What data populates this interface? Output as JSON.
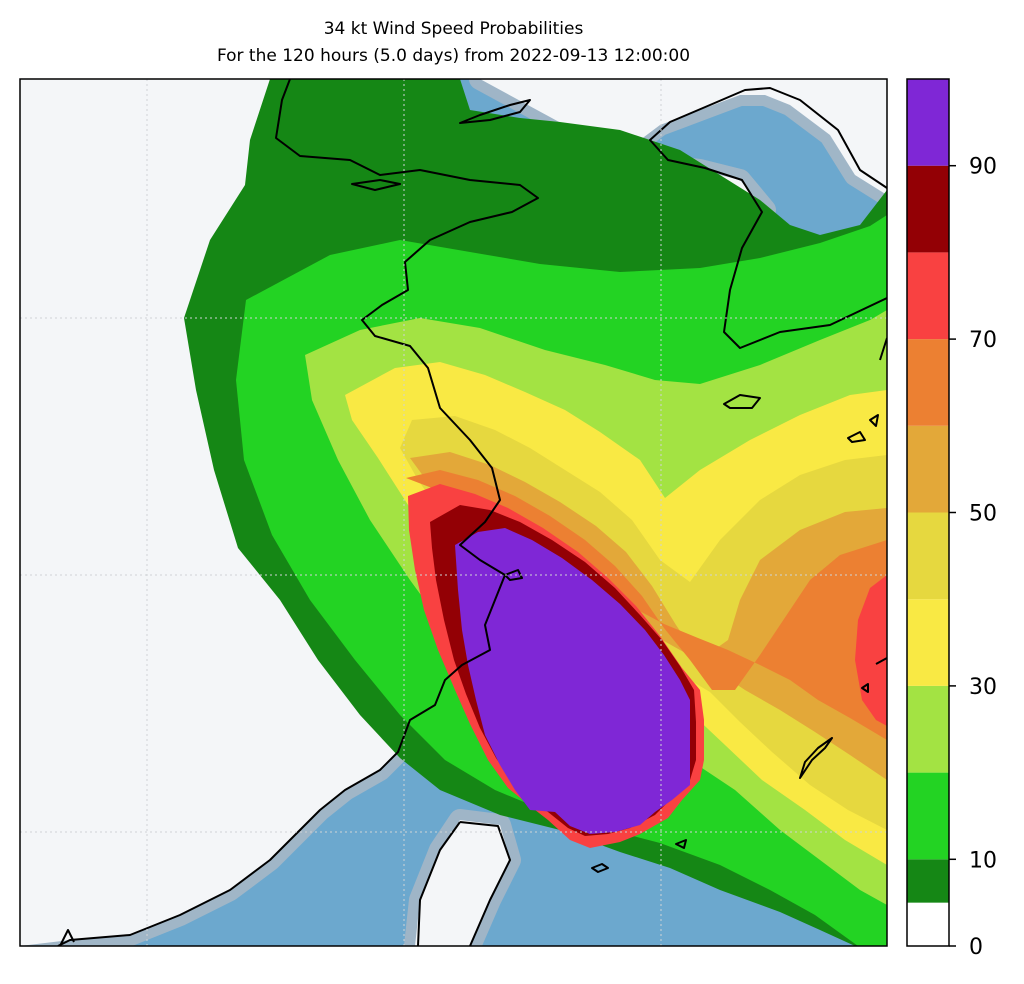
{
  "title": {
    "line1": "34 kt Wind Speed Probabilities",
    "line2": "For the 120 hours (5.0 days) from 2022-09-13 12:00:00"
  },
  "colorbar": {
    "range": [
      0,
      100
    ],
    "bins": [
      {
        "from": 0,
        "to": 5,
        "color": "#ffffff"
      },
      {
        "from": 5,
        "to": 10,
        "color": "#158715"
      },
      {
        "from": 10,
        "to": 20,
        "color": "#23d323"
      },
      {
        "from": 20,
        "to": 30,
        "color": "#a3e343"
      },
      {
        "from": 30,
        "to": 40,
        "color": "#f9e944"
      },
      {
        "from": 40,
        "to": 50,
        "color": "#e6d83f"
      },
      {
        "from": 50,
        "to": 60,
        "color": "#e3a839"
      },
      {
        "from": 60,
        "to": 70,
        "color": "#ec8032"
      },
      {
        "from": 70,
        "to": 80,
        "color": "#f94141"
      },
      {
        "from": 80,
        "to": 90,
        "color": "#930005"
      },
      {
        "from": 90,
        "to": 100,
        "color": "#7f27d6"
      }
    ],
    "ticks": [
      {
        "value": 0,
        "label": "0"
      },
      {
        "value": 10,
        "label": "10"
      },
      {
        "value": 30,
        "label": "30"
      },
      {
        "value": 50,
        "label": "50"
      },
      {
        "value": 70,
        "label": "70"
      },
      {
        "value": 90,
        "label": "90"
      }
    ]
  },
  "map": {
    "ocean_color": "#6ca8ce",
    "land_color": "#f4f6f8",
    "coast_halo_color": "#a9b8c6",
    "coastline_color": "#000000",
    "gridline_color": "#cfd3d6"
  }
}
